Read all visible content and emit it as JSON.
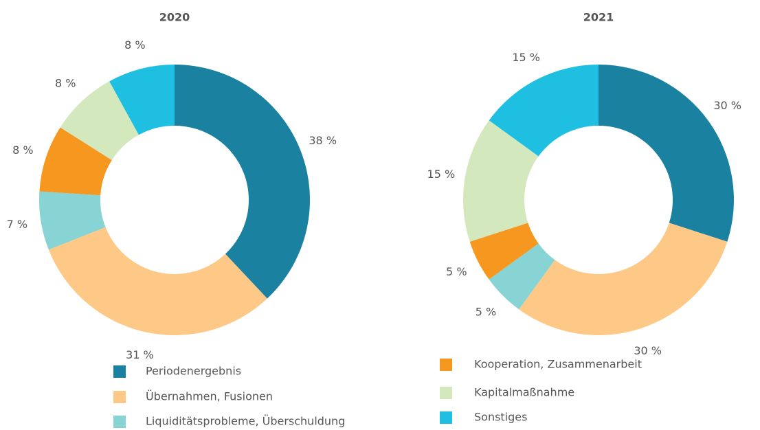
{
  "chart_data": [
    {
      "type": "donut",
      "title": "2020",
      "categories": [
        "Periodenergebnis",
        "Übernahmen, Fusionen",
        "Liquiditätsprobleme, Überschuldung",
        "Kooperation, Zusammenarbeit",
        "Kapitalmaßnahme",
        "Sonstiges"
      ],
      "values": [
        38,
        31,
        7,
        8,
        8,
        8
      ],
      "value_labels": [
        "38 %",
        "31 %",
        "7 %",
        "8 %",
        "8 %",
        "8 %"
      ],
      "colors": [
        "#1a82a0",
        "#fec987",
        "#88d3d3",
        "#f6971f",
        "#d4e8bd",
        "#1ebfe0"
      ]
    },
    {
      "type": "donut",
      "title": "2021",
      "categories": [
        "Periodenergebnis",
        "Übernahmen, Fusionen",
        "Liquiditätsprobleme, Überschuldung",
        "Kooperation, Zusammenarbeit",
        "Kapitalmaßnahme",
        "Sonstiges"
      ],
      "values": [
        30,
        30,
        5,
        5,
        15,
        15
      ],
      "value_labels": [
        "30 %",
        "30 %",
        "5 %",
        "5 %",
        "15 %",
        "15 %"
      ],
      "colors": [
        "#1a82a0",
        "#fec987",
        "#88d3d3",
        "#f6971f",
        "#d4e8bd",
        "#1ebfe0"
      ]
    }
  ]
}
